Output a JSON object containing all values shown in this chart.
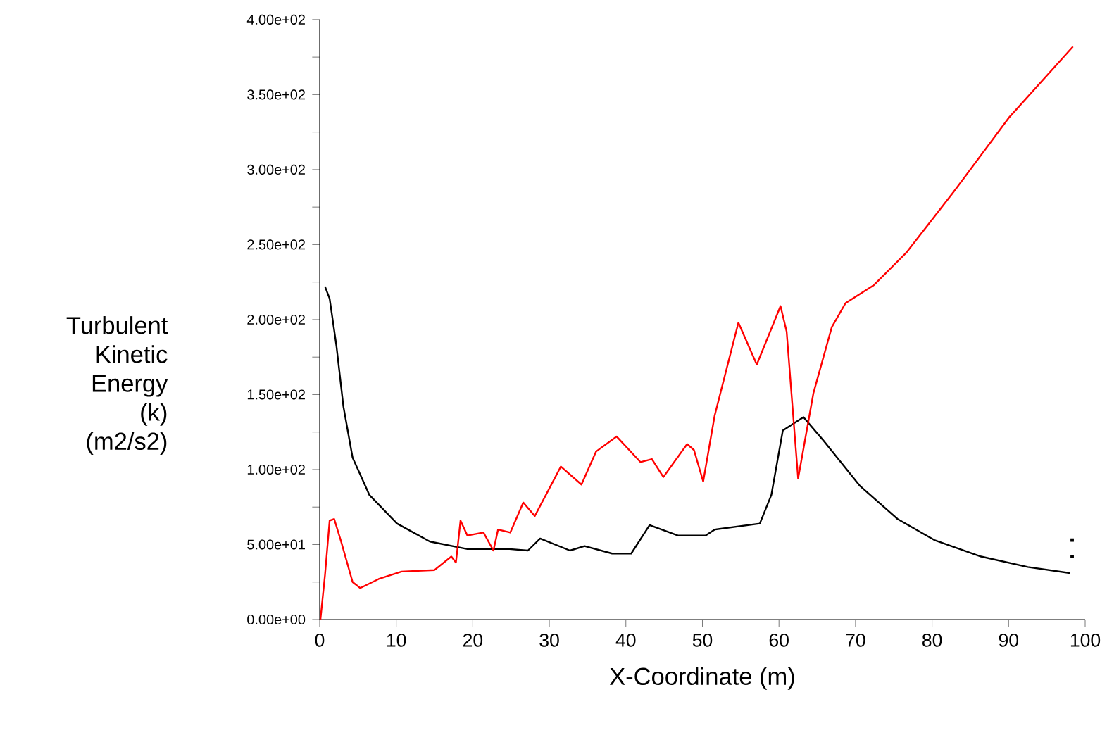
{
  "chart_data": {
    "type": "line",
    "xlabel": "X-Coordinate (m)",
    "ylabel": "Turbulent Kinetic Energy (k) (m2/s2)",
    "xlim": [
      0,
      100
    ],
    "ylim": [
      0,
      400
    ],
    "xticks": [
      0,
      10,
      20,
      30,
      40,
      50,
      60,
      70,
      80,
      90,
      100
    ],
    "yticks": [
      {
        "value": 0,
        "label": "0.00e+00"
      },
      {
        "value": 25,
        "label": null
      },
      {
        "value": 50,
        "label": "5.00e+01"
      },
      {
        "value": 75,
        "label": null
      },
      {
        "value": 100,
        "label": "1.00e+02"
      },
      {
        "value": 125,
        "label": null
      },
      {
        "value": 150,
        "label": "1.50e+02"
      },
      {
        "value": 175,
        "label": null
      },
      {
        "value": 200,
        "label": "2.00e+02"
      },
      {
        "value": 225,
        "label": null
      },
      {
        "value": 250,
        "label": "2.50e+02"
      },
      {
        "value": 275,
        "label": null
      },
      {
        "value": 300,
        "label": "3.00e+02"
      },
      {
        "value": 325,
        "label": null
      },
      {
        "value": 350,
        "label": "3.50e+02"
      },
      {
        "value": 375,
        "label": null
      },
      {
        "value": 400,
        "label": "4.00e+02"
      }
    ],
    "grid": false,
    "series": [
      {
        "color": "#000000",
        "x": [
          0.7,
          1.3,
          2.2,
          3.1,
          4.3,
          6.5,
          10.1,
          14.4,
          19.3,
          24.8,
          27.2,
          28.8,
          32.7,
          34.6,
          38.2,
          40.7,
          43.1,
          46.8,
          50.4,
          51.6,
          57.5,
          59.0,
          60.5,
          63.2,
          65.7,
          70.6,
          75.5,
          80.3,
          86.4,
          92.5,
          98.0
        ],
        "values": [
          222,
          214,
          182,
          142,
          108,
          83,
          64,
          52,
          47,
          47,
          46,
          54,
          46,
          49,
          44,
          44,
          63,
          56,
          56,
          60,
          64,
          83,
          126,
          135,
          120,
          89,
          67,
          53,
          42,
          35,
          31
        ]
      },
      {
        "color": "#ff0000",
        "x": [
          0.1,
          0.7,
          1.3,
          1.9,
          2.8,
          4.3,
          5.3,
          7.7,
          10.7,
          15.0,
          17.2,
          17.8,
          18.4,
          19.3,
          21.4,
          22.7,
          23.3,
          24.9,
          26.6,
          28.1,
          31.5,
          34.2,
          36.1,
          38.8,
          41.9,
          43.4,
          44.9,
          48.0,
          48.9,
          50.1,
          51.6,
          54.7,
          57.1,
          60.2,
          61.0,
          62.5,
          64.5,
          66.9,
          68.7,
          72.4,
          76.7,
          82.8,
          90.1,
          98.4
        ],
        "values": [
          0,
          30,
          66,
          67,
          52,
          25,
          21,
          27,
          32,
          33,
          42,
          38,
          66,
          56,
          58,
          46,
          60,
          58,
          78,
          69,
          102,
          90,
          112,
          122,
          105,
          107,
          95,
          117,
          113,
          92,
          136,
          198,
          170,
          209,
          192,
          94,
          151,
          195,
          211,
          223,
          245,
          285,
          335,
          382
        ]
      },
      {
        "type": "scatter",
        "marker": "square",
        "color": "#000000",
        "x": [
          98.3,
          98.3
        ],
        "values": [
          53,
          42
        ]
      }
    ]
  }
}
